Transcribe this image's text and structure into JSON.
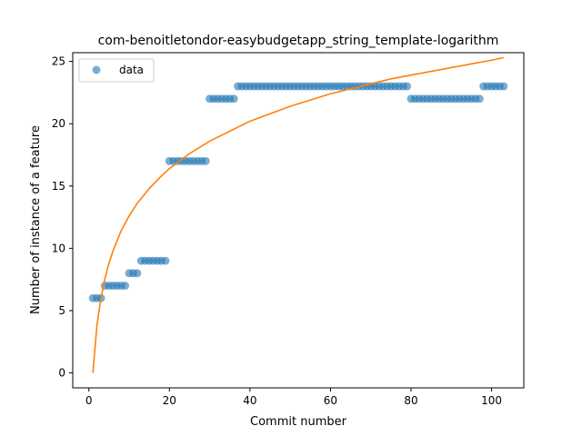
{
  "chart_data": {
    "type": "scatter",
    "title": "com-benoitletondor-easybudgetapp_string_template-logarithm",
    "xlabel": "Commit number",
    "ylabel": "Number of instance of a feature",
    "xlim": [
      -4,
      108
    ],
    "ylim": [
      -1.2,
      25.7
    ],
    "xticks": [
      0,
      20,
      40,
      60,
      80,
      100
    ],
    "yticks": [
      0,
      5,
      10,
      15,
      20,
      25
    ],
    "legend": {
      "position": "top-left",
      "entries": [
        "data"
      ]
    },
    "colors": {
      "data": "#1f77b4",
      "fit": "#ff7f0e"
    },
    "series": [
      {
        "name": "data",
        "kind": "scatter",
        "x": [
          1,
          2,
          3,
          4,
          5,
          6,
          7,
          8,
          9,
          10,
          11,
          12,
          13,
          14,
          15,
          16,
          17,
          18,
          19,
          20,
          21,
          22,
          23,
          24,
          25,
          26,
          27,
          28,
          29,
          30,
          31,
          32,
          33,
          34,
          35,
          36,
          37,
          38,
          39,
          40,
          41,
          42,
          43,
          44,
          45,
          46,
          47,
          48,
          49,
          50,
          51,
          52,
          53,
          54,
          55,
          56,
          57,
          58,
          59,
          60,
          61,
          62,
          63,
          64,
          65,
          66,
          67,
          68,
          69,
          70,
          71,
          72,
          73,
          74,
          75,
          76,
          77,
          78,
          79,
          80,
          81,
          82,
          83,
          84,
          85,
          86,
          87,
          88,
          89,
          90,
          91,
          92,
          93,
          94,
          95,
          96,
          97,
          98,
          99,
          100,
          101,
          102,
          103
        ],
        "y": [
          6,
          6,
          6,
          7,
          7,
          7,
          7,
          7,
          7,
          8,
          8,
          8,
          9,
          9,
          9,
          9,
          9,
          9,
          9,
          17,
          17,
          17,
          17,
          17,
          17,
          17,
          17,
          17,
          17,
          22,
          22,
          22,
          22,
          22,
          22,
          22,
          23,
          23,
          23,
          23,
          23,
          23,
          23,
          23,
          23,
          23,
          23,
          23,
          23,
          23,
          23,
          23,
          23,
          23,
          23,
          23,
          23,
          23,
          23,
          23,
          23,
          23,
          23,
          23,
          23,
          23,
          23,
          23,
          23,
          23,
          23,
          23,
          23,
          23,
          23,
          23,
          23,
          23,
          23,
          22,
          22,
          22,
          22,
          22,
          22,
          22,
          22,
          22,
          22,
          22,
          22,
          22,
          22,
          22,
          22,
          22,
          22,
          23,
          23,
          23,
          23,
          23,
          23
        ]
      },
      {
        "kind": "line",
        "x": [
          1,
          2,
          3,
          4,
          5,
          6,
          8,
          10,
          12,
          15,
          18,
          20,
          25,
          30,
          35,
          40,
          45,
          50,
          55,
          60,
          65,
          70,
          75,
          80,
          85,
          90,
          95,
          100,
          103
        ],
        "y": [
          0,
          3.8,
          6.0,
          7.6,
          8.8,
          9.8,
          11.4,
          12.6,
          13.6,
          14.8,
          15.8,
          16.4,
          17.6,
          18.6,
          19.4,
          20.2,
          20.8,
          21.4,
          21.9,
          22.4,
          22.8,
          23.2,
          23.6,
          23.9,
          24.2,
          24.5,
          24.8,
          25.1,
          25.3
        ]
      }
    ]
  }
}
